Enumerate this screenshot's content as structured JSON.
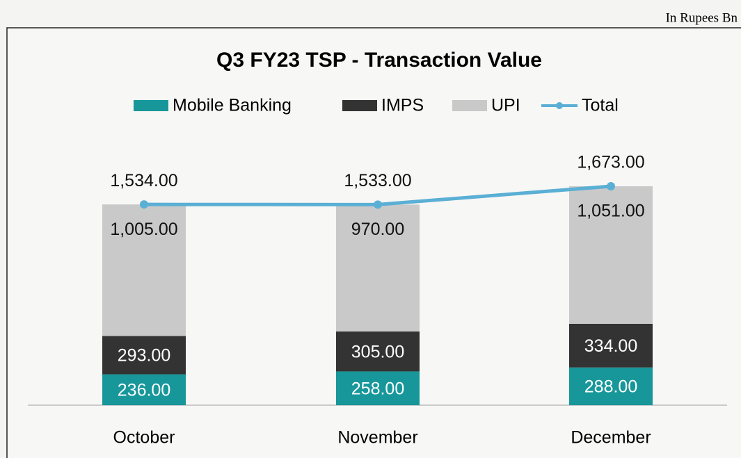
{
  "chart_data": {
    "type": "bar",
    "title": "Q3 FY23 TSP - Transaction Value",
    "unit_note": "In Rupees Bn",
    "stacked": true,
    "categories": [
      "October",
      "November",
      "December"
    ],
    "series": [
      {
        "name": "Mobile Banking",
        "type": "bar",
        "color": "#17979a",
        "values": [
          236,
          258,
          288
        ],
        "value_labels": [
          "236.00",
          "258.00",
          "288.00"
        ]
      },
      {
        "name": "IMPS",
        "type": "bar",
        "color": "#333333",
        "values": [
          293,
          305,
          334
        ],
        "value_labels": [
          "293.00",
          "305.00",
          "334.00"
        ]
      },
      {
        "name": "UPI",
        "type": "bar",
        "color": "#c9c9c9",
        "values": [
          1005,
          970,
          1051
        ],
        "value_labels": [
          "1,005.00",
          "970.00",
          "1,051.00"
        ]
      },
      {
        "name": "Total",
        "type": "line",
        "color": "#5aafd4",
        "values": [
          1534,
          1533,
          1673
        ],
        "value_labels": [
          "1,534.00",
          "1,533.00",
          "1,673.00"
        ]
      }
    ]
  }
}
